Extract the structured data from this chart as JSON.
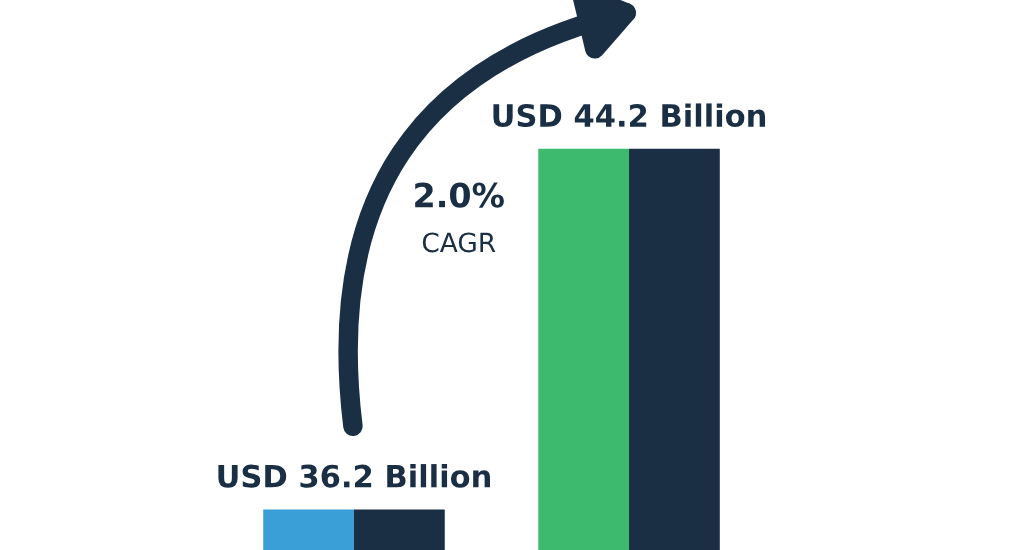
{
  "chart_data": {
    "type": "bar",
    "categories": [
      null,
      null
    ],
    "series": [
      {
        "colors": [
          "#3a9fd6",
          "#3dba6e"
        ],
        "values": [
          36.2,
          44.2
        ],
        "value_labels": [
          "USD 36.2 Billion",
          "USD 44.2 Billion"
        ]
      },
      {
        "color": "#1a2e44",
        "values": [
          36.2,
          44.2
        ]
      }
    ],
    "ylim": [
      35.3,
      47.5
    ],
    "tick_labels": false,
    "grid": false,
    "legend": false,
    "annotations": [
      "2.0%",
      "CAGR"
    ]
  }
}
